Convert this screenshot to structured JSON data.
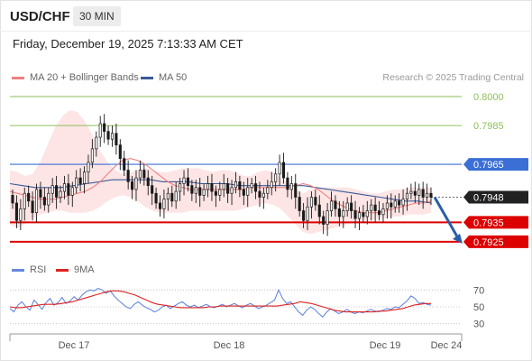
{
  "header": {
    "symbol": "USD/CHF",
    "timeframe": "30 MIN",
    "datetime": "Friday, December 19, 2025 7:13:33 AM CET"
  },
  "legend": {
    "ma20": "MA 20 + Bollinger Bands",
    "ma50": "MA 50",
    "credit": "Research © 2025 Trading Central",
    "rsi": "RSI",
    "rsi_ma": "9MA"
  },
  "colors": {
    "ma20": "#f08080",
    "ma50": "#3a5a98",
    "bollinger_fill": "#fde0e0",
    "resistance_green": "#8fbf5a",
    "resistance_blue": "#3b6fd6",
    "support_red": "#dd0000",
    "candle": "#1a1a1a",
    "rsi": "#6688dd",
    "rsi_ma": "#dd2222",
    "arrow": "#2b5ea8"
  },
  "chart_data": [
    {
      "type": "candlestick",
      "title": "USD/CHF 30 MIN",
      "ylim": [
        0.7917,
        0.8007
      ],
      "levels": [
        {
          "value": "0.8000",
          "kind": "resistance",
          "color": "#8fbf5a"
        },
        {
          "value": "0.7985",
          "kind": "resistance",
          "color": "#8fbf5a"
        },
        {
          "value": "0.7965",
          "kind": "resistance",
          "color": "#3b6fd6"
        },
        {
          "value": "0.7948",
          "kind": "last_price",
          "color": "#222222"
        },
        {
          "value": "0.7935",
          "kind": "support",
          "color": "#dd0000"
        },
        {
          "value": "0.7925",
          "kind": "support",
          "color": "#dd0000"
        }
      ],
      "x_tick_labels": [
        "Dec 17",
        "Dec 18",
        "Dec 19",
        "Dec 24"
      ],
      "close_series": [
        0.7945,
        0.7936,
        0.7942,
        0.795,
        0.7946,
        0.794,
        0.7952,
        0.7948,
        0.7944,
        0.795,
        0.7954,
        0.7948,
        0.7951,
        0.7955,
        0.7949,
        0.7953,
        0.7958,
        0.7955,
        0.7961,
        0.7966,
        0.7973,
        0.7979,
        0.7986,
        0.7982,
        0.7978,
        0.7981,
        0.7975,
        0.7968,
        0.7962,
        0.7956,
        0.7952,
        0.7958,
        0.7962,
        0.7958,
        0.7954,
        0.795,
        0.7945,
        0.7942,
        0.7947,
        0.795,
        0.7946,
        0.7951,
        0.7955,
        0.7958,
        0.7954,
        0.795,
        0.7953,
        0.7949,
        0.7952,
        0.7955,
        0.7951,
        0.7949,
        0.7952,
        0.7955,
        0.795,
        0.7953,
        0.7956,
        0.7952,
        0.7949,
        0.7953,
        0.7955,
        0.7951,
        0.7948,
        0.795,
        0.7953,
        0.7956,
        0.796,
        0.7966,
        0.7958,
        0.7952,
        0.7955,
        0.7948,
        0.7941,
        0.7936,
        0.7943,
        0.7948,
        0.7944,
        0.7938,
        0.7934,
        0.7941,
        0.7946,
        0.7942,
        0.7938,
        0.7941,
        0.7945,
        0.7941,
        0.7937,
        0.794,
        0.7938,
        0.7941,
        0.7944,
        0.7941,
        0.7939,
        0.7942,
        0.7945,
        0.7943,
        0.7946,
        0.7944,
        0.7947,
        0.795,
        0.7951,
        0.7949,
        0.7952,
        0.7948,
        0.795,
        0.7948
      ],
      "ma20": [
        0.7951,
        0.795,
        0.7949,
        0.7948,
        0.7947,
        0.7947,
        0.7947,
        0.7948,
        0.7949,
        0.795,
        0.7951,
        0.7953,
        0.7956,
        0.796,
        0.7964,
        0.7967,
        0.7968,
        0.7967,
        0.7965,
        0.7962,
        0.7959,
        0.7956,
        0.7954,
        0.7953,
        0.7952,
        0.7952,
        0.7952,
        0.7952,
        0.7952,
        0.7952,
        0.7952,
        0.7952,
        0.7953,
        0.7953,
        0.7953,
        0.7953,
        0.7953,
        0.7953,
        0.7954,
        0.7955,
        0.7954,
        0.7952,
        0.7949,
        0.7946,
        0.7944,
        0.7942,
        0.7941,
        0.794,
        0.794,
        0.794,
        0.7941,
        0.7942,
        0.7943,
        0.7944,
        0.7945,
        0.7945,
        0.7946
      ],
      "ma50": [
        0.7955,
        0.7954,
        0.7953,
        0.7953,
        0.7953,
        0.7954,
        0.7955,
        0.7956,
        0.7957,
        0.7957,
        0.7957,
        0.7957,
        0.7956,
        0.7956,
        0.7956,
        0.7955,
        0.7955,
        0.7955,
        0.7954,
        0.7954,
        0.7954,
        0.7954,
        0.7954,
        0.7954,
        0.7953,
        0.7952,
        0.7951,
        0.795,
        0.7949,
        0.7948,
        0.7947,
        0.7946,
        0.7946,
        0.7945
      ],
      "bollinger_upper": [
        0.7962,
        0.7961,
        0.7959,
        0.796,
        0.7966,
        0.7975,
        0.7984,
        0.799,
        0.7993,
        0.7992,
        0.7987,
        0.798,
        0.7972,
        0.7966,
        0.7962,
        0.796,
        0.7961,
        0.7962,
        0.7963,
        0.7962,
        0.7961,
        0.7961,
        0.7962,
        0.7963,
        0.7963,
        0.7963,
        0.7962,
        0.7961,
        0.7962,
        0.7962,
        0.7961,
        0.7959,
        0.7959,
        0.7961,
        0.7962,
        0.7961,
        0.7958,
        0.7955,
        0.7952,
        0.795,
        0.7952,
        0.7953,
        0.7953,
        0.7953,
        0.7953,
        0.7953,
        0.7952,
        0.7951,
        0.795,
        0.795,
        0.7951,
        0.7952,
        0.7952,
        0.7953,
        0.7953,
        0.7953,
        0.7953
      ],
      "bollinger_lower": [
        0.7934,
        0.7932,
        0.7934,
        0.7937,
        0.7939,
        0.794,
        0.7941,
        0.7941,
        0.794,
        0.794,
        0.794,
        0.7941,
        0.7943,
        0.7946,
        0.7948,
        0.7949,
        0.7948,
        0.7946,
        0.7943,
        0.7941,
        0.794,
        0.794,
        0.794,
        0.794,
        0.7941,
        0.7941,
        0.7941,
        0.7941,
        0.7941,
        0.7941,
        0.7941,
        0.7942,
        0.7943,
        0.7944,
        0.7945,
        0.7944,
        0.7942,
        0.7938,
        0.7934,
        0.793,
        0.7929,
        0.793,
        0.7931,
        0.7932,
        0.7933,
        0.7934,
        0.7935,
        0.7936,
        0.7936,
        0.7937,
        0.7937,
        0.7938,
        0.7938,
        0.7939,
        0.7939,
        0.7939,
        0.794
      ],
      "projection": {
        "from": 0.7948,
        "to": 0.7925,
        "direction": "down"
      }
    },
    {
      "type": "line",
      "title": "RSI",
      "ylim": [
        20,
        80
      ],
      "y_tick_labels": [
        "70",
        "50",
        "30"
      ],
      "gridlines": [
        70,
        50,
        30
      ],
      "series": [
        {
          "name": "RSI",
          "values": [
            48,
            44,
            52,
            56,
            50,
            46,
            58,
            53,
            47,
            55,
            60,
            52,
            55,
            61,
            54,
            57,
            62,
            58,
            64,
            68,
            70,
            69,
            72,
            70,
            66,
            69,
            63,
            58,
            54,
            50,
            48,
            53,
            56,
            52,
            49,
            47,
            44,
            46,
            50,
            52,
            48,
            51,
            54,
            56,
            52,
            50,
            52,
            49,
            51,
            53,
            50,
            49,
            51,
            53,
            50,
            52,
            54,
            51,
            49,
            52,
            54,
            51,
            48,
            50,
            52,
            55,
            58,
            70,
            60,
            54,
            56,
            50,
            44,
            40,
            46,
            50,
            47,
            42,
            38,
            44,
            48,
            45,
            42,
            44,
            47,
            44,
            42,
            44,
            43,
            45,
            47,
            45,
            44,
            46,
            48,
            47,
            50,
            49,
            53,
            57,
            63,
            60,
            54,
            55,
            53,
            52
          ]
        },
        {
          "name": "9MA",
          "values": [
            50,
            49,
            49,
            50,
            51,
            52,
            53,
            53,
            53,
            54,
            55,
            56,
            58,
            60,
            62,
            64,
            66,
            68,
            69,
            69,
            68,
            66,
            64,
            61,
            58,
            55,
            53,
            52,
            51,
            50,
            49,
            49,
            49,
            49,
            49,
            50,
            50,
            51,
            51,
            51,
            51,
            51,
            51,
            51,
            51,
            51,
            51,
            51,
            52,
            53,
            54,
            56,
            55,
            54,
            52,
            50,
            48,
            46,
            45,
            44,
            44,
            44,
            44,
            44,
            44,
            45,
            45,
            46,
            47,
            48,
            50,
            52,
            53,
            54,
            54
          ]
        }
      ]
    }
  ]
}
